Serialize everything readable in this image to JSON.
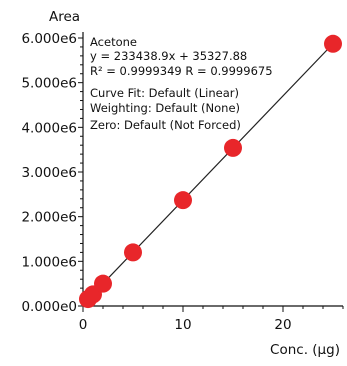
{
  "chart_data": {
    "type": "scatter",
    "title": "",
    "xlabel": "Conc. (µg)",
    "ylabel": "Area",
    "xlim": [
      0,
      26
    ],
    "ylim": [
      0,
      6000000
    ],
    "x_ticks": [
      0,
      10,
      20
    ],
    "x_tick_labels": [
      "0",
      "10",
      "20"
    ],
    "y_ticks": [
      0,
      1000000,
      2000000,
      3000000,
      4000000,
      5000000,
      6000000
    ],
    "y_tick_labels": [
      "0.000e0",
      "1.000e6",
      "2.000e6",
      "3.000e6",
      "4.000e6",
      "5.000e6",
      "6.000e6"
    ],
    "grid": false,
    "legend": "none",
    "point_color": "#e8262a",
    "line_color": "#222222",
    "fit": {
      "slope": 233438.9,
      "intercept": 35327.88
    },
    "series": [
      {
        "x": [
          0.5,
          1.0,
          2.0,
          5.0,
          10.0,
          15.0,
          25.0
        ],
        "y": [
          155000,
          260000,
          500000,
          1200000,
          2370000,
          3540000,
          5870000
        ]
      }
    ],
    "annotation_lines": [
      "Acetone",
      "y = 233438.9x + 35327.88",
      "R² = 0.9999349    R = 0.9999675",
      "Curve Fit: Default (Linear)",
      "Weighting: Default (None)",
      "Zero: Default (Not Forced)"
    ]
  }
}
